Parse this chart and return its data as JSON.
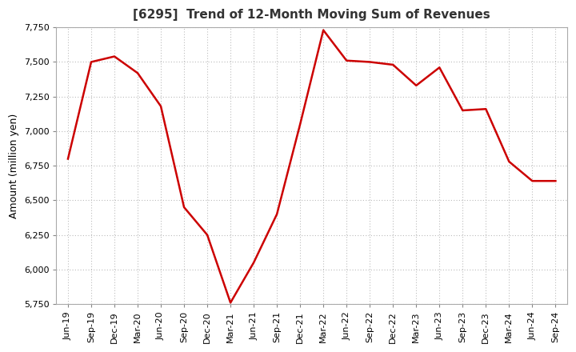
{
  "title": "[6295]  Trend of 12-Month Moving Sum of Revenues",
  "ylabel": "Amount (million yen)",
  "line_color": "#cc0000",
  "line_width": 1.8,
  "background_color": "#ffffff",
  "plot_bg_color": "#ffffff",
  "grid_color": "#bbbbbb",
  "ylim": [
    5750,
    7750
  ],
  "yticks": [
    5750,
    6000,
    6250,
    6500,
    6750,
    7000,
    7250,
    7500,
    7750
  ],
  "dates": [
    "Jun-19",
    "Sep-19",
    "Dec-19",
    "Mar-20",
    "Jun-20",
    "Sep-20",
    "Dec-20",
    "Mar-21",
    "Jun-21",
    "Sep-21",
    "Dec-21",
    "Mar-22",
    "Jun-22",
    "Sep-22",
    "Dec-22",
    "Mar-23",
    "Jun-23",
    "Sep-23",
    "Dec-23",
    "Mar-24",
    "Jun-24",
    "Sep-24"
  ],
  "values": [
    6800,
    7500,
    7540,
    7420,
    7180,
    6450,
    6250,
    5760,
    6050,
    6400,
    7050,
    7730,
    7510,
    7500,
    7480,
    7330,
    7460,
    7150,
    7160,
    6780,
    6640,
    6640
  ],
  "title_fontsize": 11,
  "ylabel_fontsize": 9,
  "tick_labelsize": 8
}
